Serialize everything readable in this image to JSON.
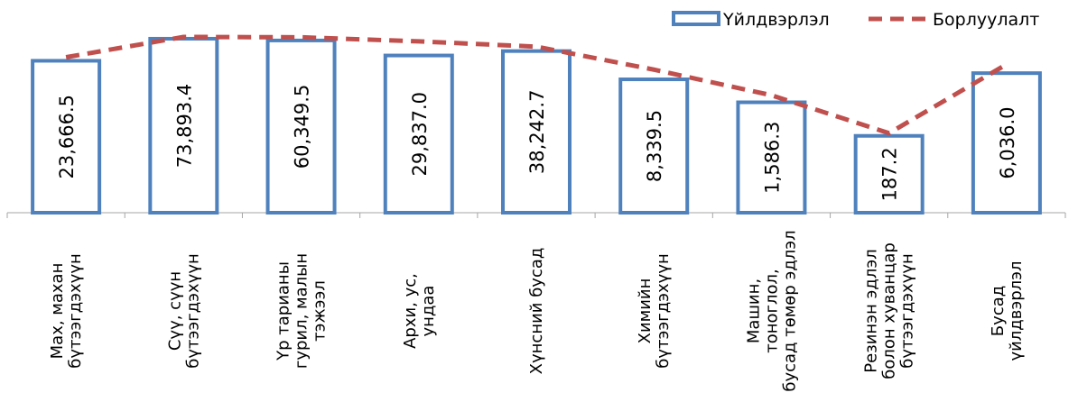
{
  "chart_data": {
    "type": "bar",
    "categories": [
      [
        "Мах, махан",
        "бүтээгдэхүүн"
      ],
      [
        "Сүү, сүүн",
        "бүтээгдэхүүн"
      ],
      [
        "Үр тарианы",
        "гурил, малын",
        "тэжээл"
      ],
      [
        "Архи, ус,",
        "ундаа"
      ],
      [
        "Хүнсний бусад"
      ],
      [
        "Химийн",
        "бүтээгдэхүүн"
      ],
      [
        "Машин,",
        "тоноглол,",
        "бусад төмөр эдлэл"
      ],
      [
        "Резинэн эдлэл",
        "болон хуванцар",
        "бүтээгдэхүүн"
      ],
      [
        "Бусад",
        "үйлдвэрлэл"
      ]
    ],
    "labels": [
      "23,666.5",
      "73,893.4",
      "60,349.5",
      "29,837.0",
      "38,242.7",
      "8,339.5",
      "1,586.3",
      "187.2",
      "6,036.0"
    ],
    "series": [
      {
        "name": "Үйлдвэрлэл",
        "style": "bar",
        "color": "#4f81bd",
        "heights": [
          0.86,
          0.985,
          0.975,
          0.89,
          0.915,
          0.755,
          0.625,
          0.435,
          0.79
        ]
      },
      {
        "name": "Борлуулалт",
        "style": "dashed-line",
        "color": "#c0504d",
        "heights": [
          0.88,
          0.995,
          0.993,
          0.97,
          0.94,
          0.81,
          0.665,
          0.45,
          0.84
        ]
      }
    ],
    "legend": "top-right",
    "grid": false
  }
}
